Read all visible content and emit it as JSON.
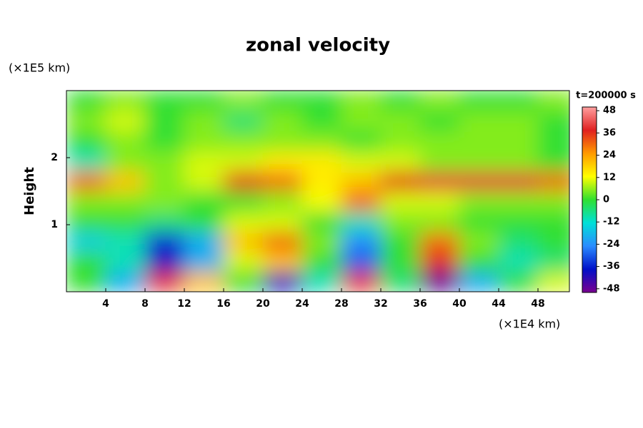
{
  "chart_data": {
    "type": "heatmap",
    "title": "zonal velocity",
    "y_label": "Height",
    "y_unit": "(×1E5 km)",
    "x_unit": "(×1E4 km)",
    "colorbar_label": "t=200000 s",
    "xlim": [
      0,
      51.2
    ],
    "ylim": [
      0,
      3
    ],
    "xticks": [
      4,
      8,
      12,
      16,
      20,
      24,
      28,
      32,
      36,
      40,
      44,
      48
    ],
    "yticks": [
      1,
      2
    ],
    "clim": [
      -50,
      50
    ],
    "cticks": [
      48,
      36,
      24,
      12,
      0,
      -12,
      -24,
      -36,
      -48
    ],
    "colormap": [
      "#7a0090",
      "#0010c8",
      "#2a8cff",
      "#00e0d8",
      "#30e030",
      "#ffff00",
      "#ff9a00",
      "#e02020",
      "#ffa0a0"
    ],
    "x": [
      2,
      6,
      10,
      14,
      18,
      22,
      26,
      30,
      34,
      38,
      42,
      46,
      50
    ],
    "y": [
      0.15,
      0.45,
      0.75,
      1.05,
      1.35,
      1.65,
      1.95,
      2.25,
      2.55,
      2.85
    ],
    "z": [
      [
        0,
        -20,
        40,
        20,
        0,
        -40,
        -10,
        40,
        -5,
        -48,
        -20,
        0,
        10
      ],
      [
        0,
        -10,
        -40,
        -20,
        10,
        20,
        0,
        -30,
        0,
        36,
        0,
        -10,
        -5
      ],
      [
        -15,
        -10,
        -35,
        -20,
        20,
        30,
        5,
        -25,
        0,
        30,
        5,
        -5,
        0
      ],
      [
        0,
        0,
        -5,
        0,
        10,
        10,
        0,
        -10,
        5,
        5,
        0,
        0,
        0
      ],
      [
        5,
        5,
        5,
        0,
        0,
        5,
        12,
        30,
        10,
        10,
        5,
        5,
        5
      ],
      [
        30,
        20,
        5,
        10,
        35,
        30,
        15,
        20,
        35,
        40,
        40,
        40,
        30
      ],
      [
        -10,
        5,
        5,
        10,
        10,
        15,
        15,
        10,
        10,
        5,
        5,
        5,
        0
      ],
      [
        0,
        5,
        0,
        5,
        5,
        5,
        5,
        0,
        5,
        5,
        5,
        5,
        0
      ],
      [
        5,
        10,
        0,
        5,
        -5,
        5,
        0,
        5,
        5,
        0,
        5,
        5,
        0
      ],
      [
        0,
        5,
        0,
        0,
        5,
        0,
        0,
        5,
        0,
        5,
        0,
        0,
        5
      ]
    ]
  }
}
